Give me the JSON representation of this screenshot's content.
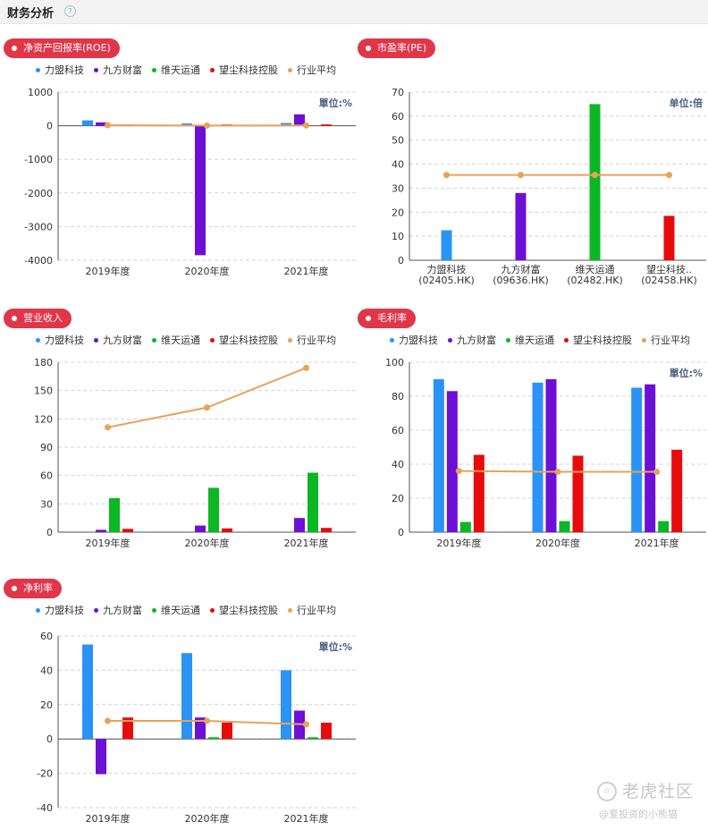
{
  "header": {
    "title": "财务分析",
    "help_icon": "question-circle-icon"
  },
  "legend_colors": [
    "#2a93f5",
    "#6e0fd6",
    "#0bb722",
    "#e80b0b",
    "#e8a25a"
  ],
  "chart_data": [
    {
      "id": "roe",
      "type": "bar",
      "title": "净资产回报率(ROE)",
      "legend": [
        "力盟科技",
        "九方财富",
        "维天运通",
        "望尘科技控股",
        "行业平均"
      ],
      "unit_label": "單位:%",
      "categories": [
        "2019年度",
        "2020年度",
        "2021年度"
      ],
      "yticks": [
        "1000",
        "0",
        "-1000",
        "-2000",
        "-3000",
        "-4000"
      ],
      "ylim": [
        -4000,
        1000
      ],
      "series": [
        {
          "name": "力盟科技",
          "values": [
            160,
            70,
            80
          ]
        },
        {
          "name": "九方财富",
          "values": [
            100,
            -3850,
            340
          ]
        },
        {
          "name": "维天运通",
          "values": [
            0,
            0,
            0
          ]
        },
        {
          "name": "望尘科技控股",
          "values": [
            40,
            40,
            40
          ]
        }
      ],
      "line": {
        "name": "行业平均",
        "values": [
          15,
          5,
          10
        ]
      },
      "grid": true
    },
    {
      "id": "pe",
      "type": "bar",
      "title": "市盈率(PE)",
      "legend": [],
      "unit_label": "单位:倍",
      "categories": [
        "力盟科技\n(02405.HK)",
        "九方财富\n(09636.HK)",
        "维天运通\n(02482.HK)",
        "望尘科技..\n(02458.HK)"
      ],
      "yticks": [
        "70",
        "60",
        "50",
        "40",
        "30",
        "20",
        "10",
        "0"
      ],
      "ylim": [
        0,
        70
      ],
      "series": [
        {
          "name": "",
          "values": [
            12.5,
            28,
            65,
            18.5
          ]
        }
      ],
      "line": {
        "name": "",
        "values": [
          35.5,
          35.5,
          35.5,
          35.5
        ]
      },
      "grid": true
    },
    {
      "id": "revenue",
      "type": "bar",
      "title": "营业收入",
      "legend": [
        "力盟科技",
        "九方财富",
        "维天运通",
        "望尘科技控股",
        "行业平均"
      ],
      "unit_label": "",
      "categories": [
        "2019年度",
        "2020年度",
        "2021年度"
      ],
      "yticks": [
        "180",
        "150",
        "120",
        "90",
        "60",
        "30",
        "0"
      ],
      "ylim": [
        0,
        180
      ],
      "series": [
        {
          "name": "力盟科技",
          "values": [
            0,
            0,
            0
          ]
        },
        {
          "name": "九方财富",
          "values": [
            2.5,
            7,
            15
          ]
        },
        {
          "name": "维天运通",
          "values": [
            36,
            47,
            63
          ]
        },
        {
          "name": "望尘科技控股",
          "values": [
            3.5,
            4,
            4.5
          ]
        }
      ],
      "line": {
        "name": "行业平均",
        "values": [
          111,
          132,
          174
        ]
      },
      "grid": true
    },
    {
      "id": "gross_margin",
      "type": "bar",
      "title": "毛利率",
      "legend": [
        "力盟科技",
        "九方财富",
        "维天运通",
        "望尘科技控股",
        "行业平均"
      ],
      "unit_label": "單位:%",
      "categories": [
        "2019年度",
        "2020年度",
        "2021年度"
      ],
      "yticks": [
        "100",
        "80",
        "60",
        "40",
        "20",
        "0"
      ],
      "ylim": [
        0,
        100
      ],
      "series": [
        {
          "name": "力盟科技",
          "values": [
            90,
            88,
            85
          ]
        },
        {
          "name": "九方财富",
          "values": [
            83,
            90,
            87
          ]
        },
        {
          "name": "维天运通",
          "values": [
            6,
            6.5,
            6.5
          ]
        },
        {
          "name": "望尘科技控股",
          "values": [
            45.5,
            45,
            48.5
          ]
        }
      ],
      "line": {
        "name": "行业平均",
        "values": [
          36,
          35.5,
          35.5
        ]
      },
      "grid": true
    },
    {
      "id": "net_margin",
      "type": "bar",
      "title": "净利率",
      "legend": [
        "力盟科技",
        "九方财富",
        "维天运通",
        "望尘科技控股",
        "行业平均"
      ],
      "unit_label": "單位:%",
      "categories": [
        "2019年度",
        "2020年度",
        "2021年度"
      ],
      "yticks": [
        "60",
        "40",
        "20",
        "0",
        "-20",
        "-40"
      ],
      "ylim": [
        -40,
        60
      ],
      "series": [
        {
          "name": "力盟科技",
          "values": [
            55,
            50,
            40
          ]
        },
        {
          "name": "九方财富",
          "values": [
            -20.5,
            12.5,
            16.5
          ]
        },
        {
          "name": "维天运通",
          "values": [
            0,
            1,
            1
          ]
        },
        {
          "name": "望尘科技控股",
          "values": [
            12.5,
            9.5,
            9.5
          ]
        }
      ],
      "line": {
        "name": "行业平均",
        "values": [
          10.5,
          10.5,
          8.5
        ]
      },
      "grid": true
    }
  ],
  "watermark": {
    "name": "老虎社区",
    "user": "@爱投资的小熊猫",
    "icon": "tiger-logo-icon"
  }
}
